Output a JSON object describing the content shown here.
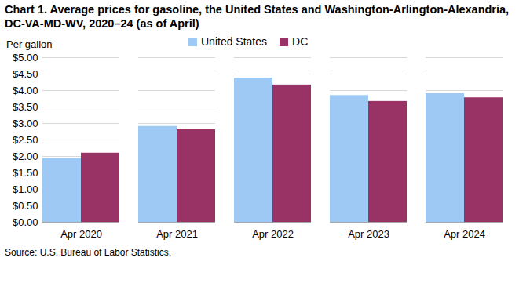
{
  "chart_data": {
    "type": "bar",
    "title": "Chart 1. Average prices for gasoline, the United States and Washington-Arlington-Alexandria, DC-VA-MD-WV, 2020–24 (as of April)",
    "y_label": "Per gallon",
    "source": "Source: U.S. Bureau of Labor Statistics.",
    "categories": [
      "Apr 2020",
      "Apr 2021",
      "Apr 2022",
      "Apr 2023",
      "Apr 2024"
    ],
    "series": [
      {
        "name": "United States",
        "color": "#9ec9f5",
        "values": [
          1.94,
          2.91,
          4.38,
          3.85,
          3.91
        ]
      },
      {
        "name": "DC",
        "color": "#993366",
        "values": [
          2.1,
          2.81,
          4.17,
          3.67,
          3.78
        ]
      }
    ],
    "ylim": [
      0,
      5
    ],
    "yticks": [
      {
        "value": 0,
        "label": "$0.00"
      },
      {
        "value": 0.5,
        "label": "$0.50"
      },
      {
        "value": 1,
        "label": "$1.00"
      },
      {
        "value": 1.5,
        "label": "$1.50"
      },
      {
        "value": 2,
        "label": "$2.00"
      },
      {
        "value": 2.5,
        "label": "$2.50"
      },
      {
        "value": 3,
        "label": "$3.00"
      },
      {
        "value": 3.5,
        "label": "$3.50"
      },
      {
        "value": 4,
        "label": "$4.00"
      },
      {
        "value": 4.5,
        "label": "$4.50"
      },
      {
        "value": 5,
        "label": "$5.00"
      }
    ],
    "grid": true,
    "legend": "top"
  }
}
